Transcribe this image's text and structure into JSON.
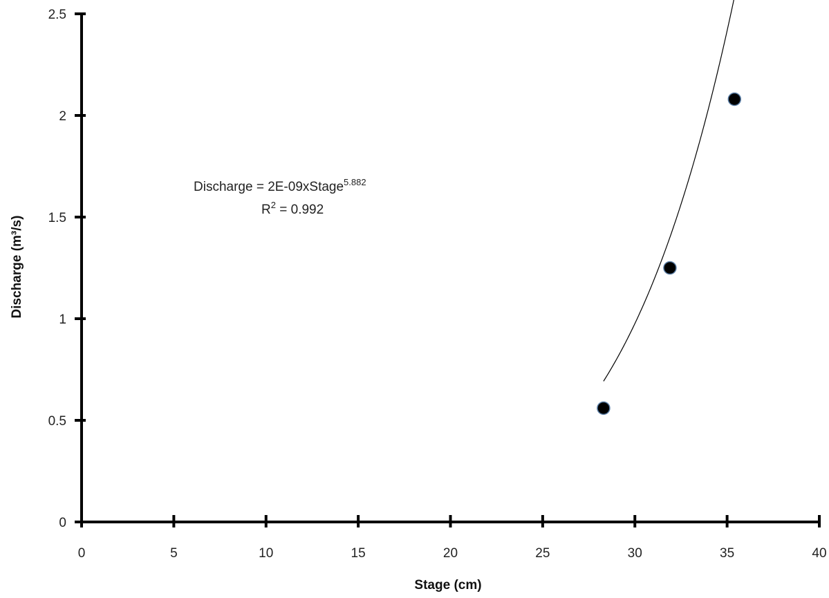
{
  "chart_data": {
    "type": "scatter",
    "title": "",
    "xlabel": "Stage (cm)",
    "ylabel": "Discharge (m³/s)",
    "xlim": [
      0,
      40
    ],
    "ylim": [
      0,
      2.5
    ],
    "x_ticks": [
      0,
      5,
      10,
      15,
      20,
      25,
      30,
      35,
      40
    ],
    "y_ticks": [
      0,
      0.5,
      1,
      1.5,
      2,
      2.5
    ],
    "x_tick_labels": [
      "0",
      "5",
      "10",
      "15",
      "20",
      "25",
      "30",
      "35",
      "40"
    ],
    "y_tick_labels": [
      "0",
      "0.5",
      "1",
      "1.5",
      "2",
      "2.5"
    ],
    "grid": false,
    "legend": "none",
    "series": [
      {
        "points": [
          {
            "x": 28.3,
            "y": 0.56
          },
          {
            "x": 31.9,
            "y": 1.25
          },
          {
            "x": 35.4,
            "y": 2.08
          }
        ],
        "marker_color": "#000000"
      }
    ],
    "trendline": {
      "type": "power",
      "coefficient": 2e-09,
      "exponent": 5.882,
      "x_range": [
        28.3,
        35.6
      ],
      "color": "#000000"
    },
    "annotation": {
      "equation_base": "Discharge = 2E-09xStage",
      "equation_exponent": "5.882",
      "r2_base": "R",
      "r2_sup": "2",
      "r2_rest": " = 0.992"
    }
  }
}
